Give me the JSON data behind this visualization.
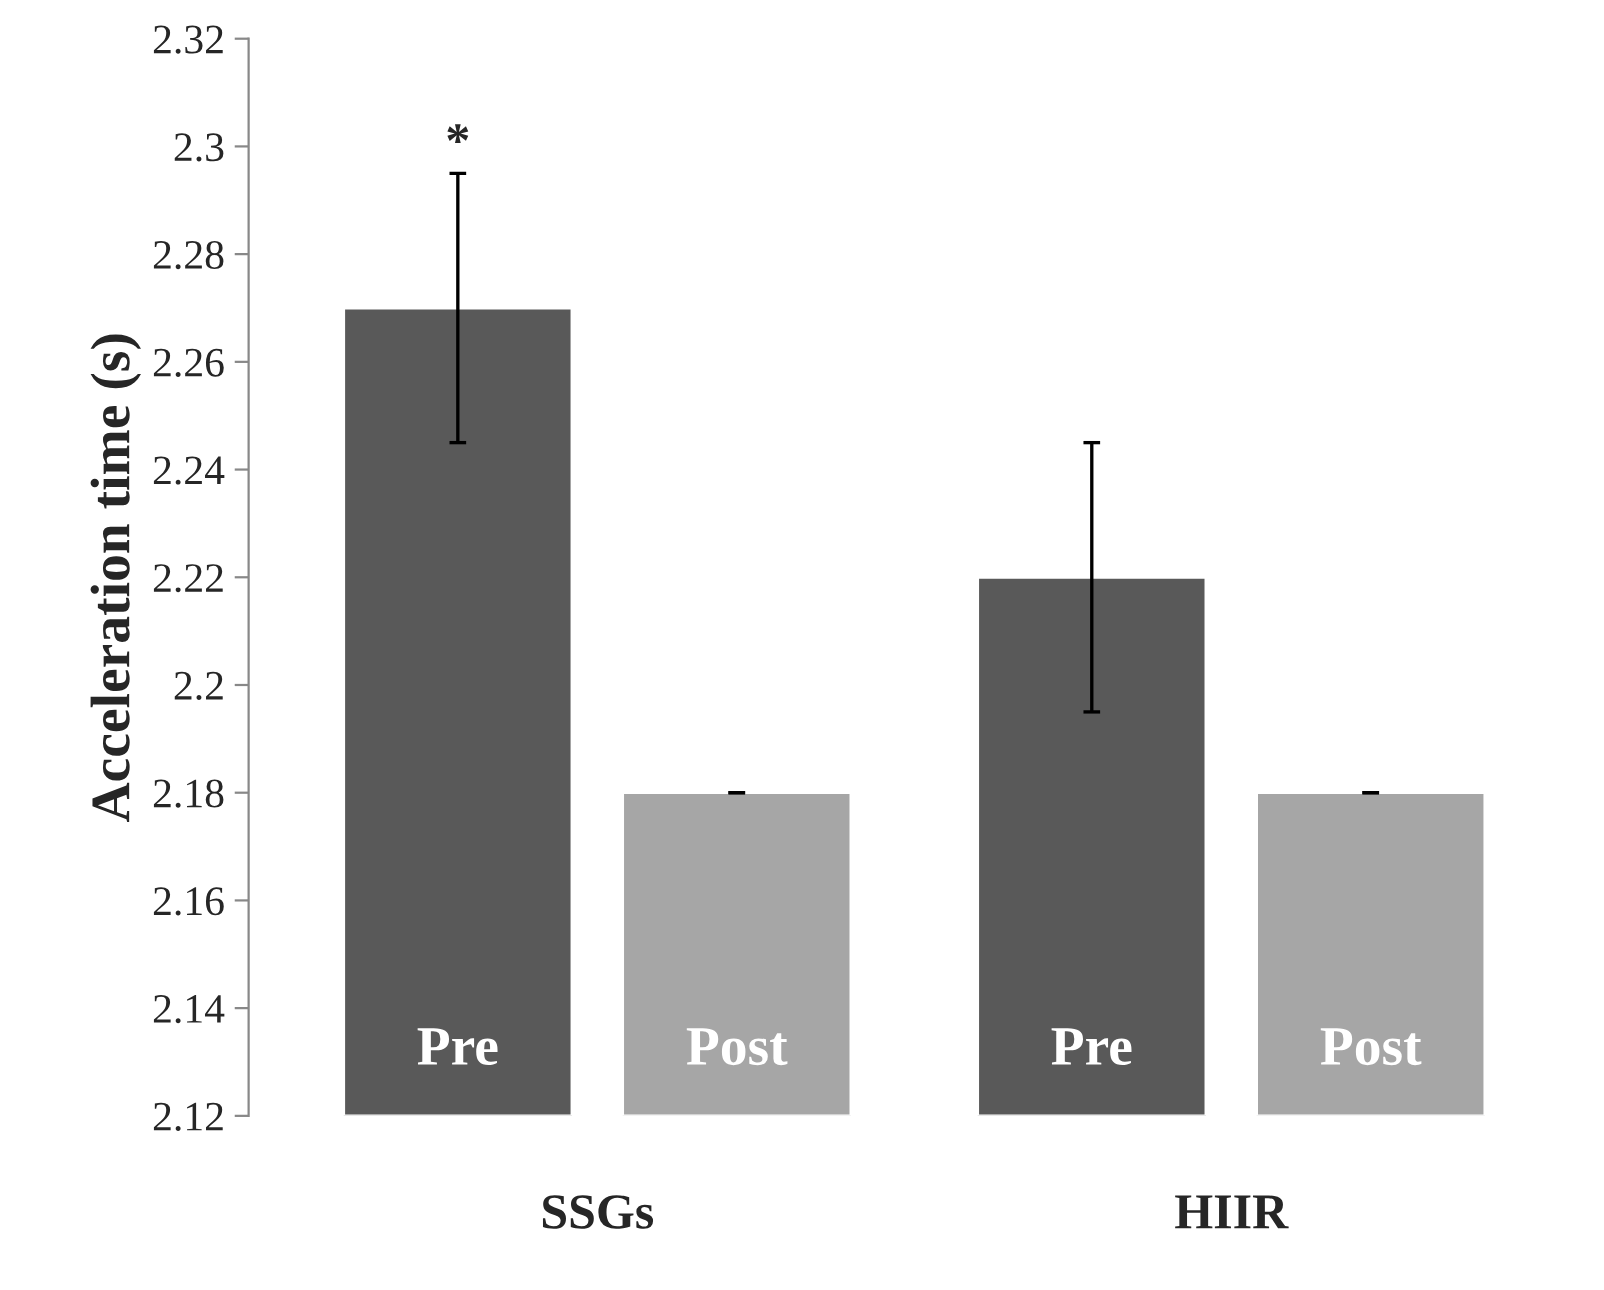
{
  "chart_data": {
    "type": "bar",
    "ylabel": "Acceleration time (s)",
    "categories": [
      "SSGs",
      "HIIR"
    ],
    "series": [
      {
        "name": "Pre",
        "color": "#595959",
        "values": [
          2.27,
          2.22
        ],
        "errors": [
          0.025,
          0.025
        ]
      },
      {
        "name": "Post",
        "color": "#a6a6a6",
        "values": [
          2.18,
          2.18
        ],
        "errors": [
          0,
          0
        ]
      }
    ],
    "ylim": [
      2.12,
      2.32
    ],
    "yticks": [
      2.12,
      2.14,
      2.16,
      2.18,
      2.2,
      2.22,
      2.24,
      2.26,
      2.28,
      2.3,
      2.32
    ],
    "annotations": [
      "*"
    ],
    "grid": false,
    "legend": false
  }
}
